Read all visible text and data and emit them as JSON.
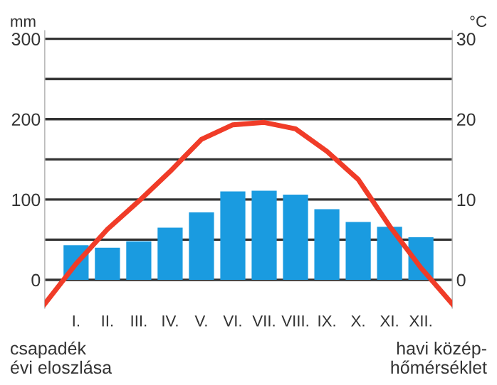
{
  "chart_data": {
    "type": "bar",
    "categories": [
      null,
      "I.",
      "II.",
      "III.",
      "IV.",
      "V.",
      "VI.",
      "VII.",
      "VIII.",
      "IX.",
      "X.",
      "XI.",
      "XII.",
      null
    ],
    "series": [
      {
        "color": "#1a9be0",
        "values": [
          null,
          43,
          40,
          48,
          65,
          84,
          110,
          111,
          106,
          88,
          72,
          66,
          53,
          null
        ]
      },
      {
        "type": "line",
        "axis": "y2",
        "color": "#f03c28",
        "values": [
          -3,
          2,
          6.3,
          9.8,
          13.5,
          17.5,
          19.3,
          19.6,
          18.8,
          16,
          12.5,
          6.7,
          1.5,
          -3
        ]
      }
    ],
    "ylabel": "mm",
    "y2label": "°C",
    "ylim": [
      -35,
      310
    ],
    "yticks": [
      0,
      {
        "value": 50,
        "label": null
      },
      100,
      {
        "value": 150,
        "label": null
      },
      200,
      {
        "value": 250,
        "label": null
      },
      300
    ],
    "y2lim": [
      -3.5,
      31
    ],
    "y2ticks": [
      0,
      10,
      20,
      30
    ],
    "grid": "y",
    "marker": "none",
    "line_style": "solid",
    "annotations": [
      "csapadék\névi eloszlása",
      "havi közép-\nhőmérséklet"
    ]
  }
}
